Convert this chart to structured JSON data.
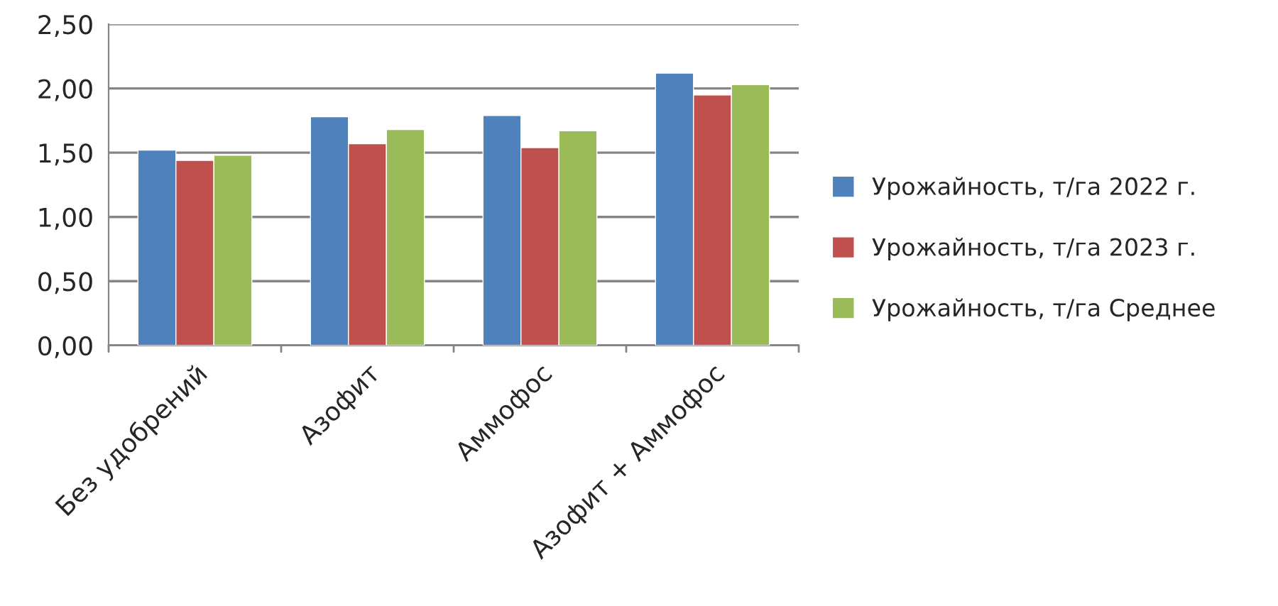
{
  "chart_data": {
    "type": "bar",
    "categories": [
      "Без удобрений",
      "Азофит",
      "Аммофос",
      "Азофит + Аммофос"
    ],
    "series": [
      {
        "name": "Урожайность, т/га 2022 г.",
        "color": "#4f81bd",
        "values": [
          1.52,
          1.78,
          1.79,
          2.12
        ]
      },
      {
        "name": "Урожайность, т/га 2023 г.",
        "color": "#c0504d",
        "values": [
          1.44,
          1.57,
          1.54,
          1.95
        ]
      },
      {
        "name": "Урожайность, т/га Среднее",
        "color": "#9bbb59",
        "values": [
          1.48,
          1.68,
          1.67,
          2.03
        ]
      }
    ],
    "ylim": [
      0,
      2.5
    ],
    "yticks": [
      {
        "value": 0,
        "label": "0,00"
      },
      {
        "value": 0.5,
        "label": "0,50"
      },
      {
        "value": 1,
        "label": "1,00"
      },
      {
        "value": 1.5,
        "label": "1,50"
      },
      {
        "value": 2,
        "label": "2,00"
      },
      {
        "value": 2.5,
        "label": "2,50"
      }
    ],
    "grid": "y",
    "legend": "right"
  }
}
